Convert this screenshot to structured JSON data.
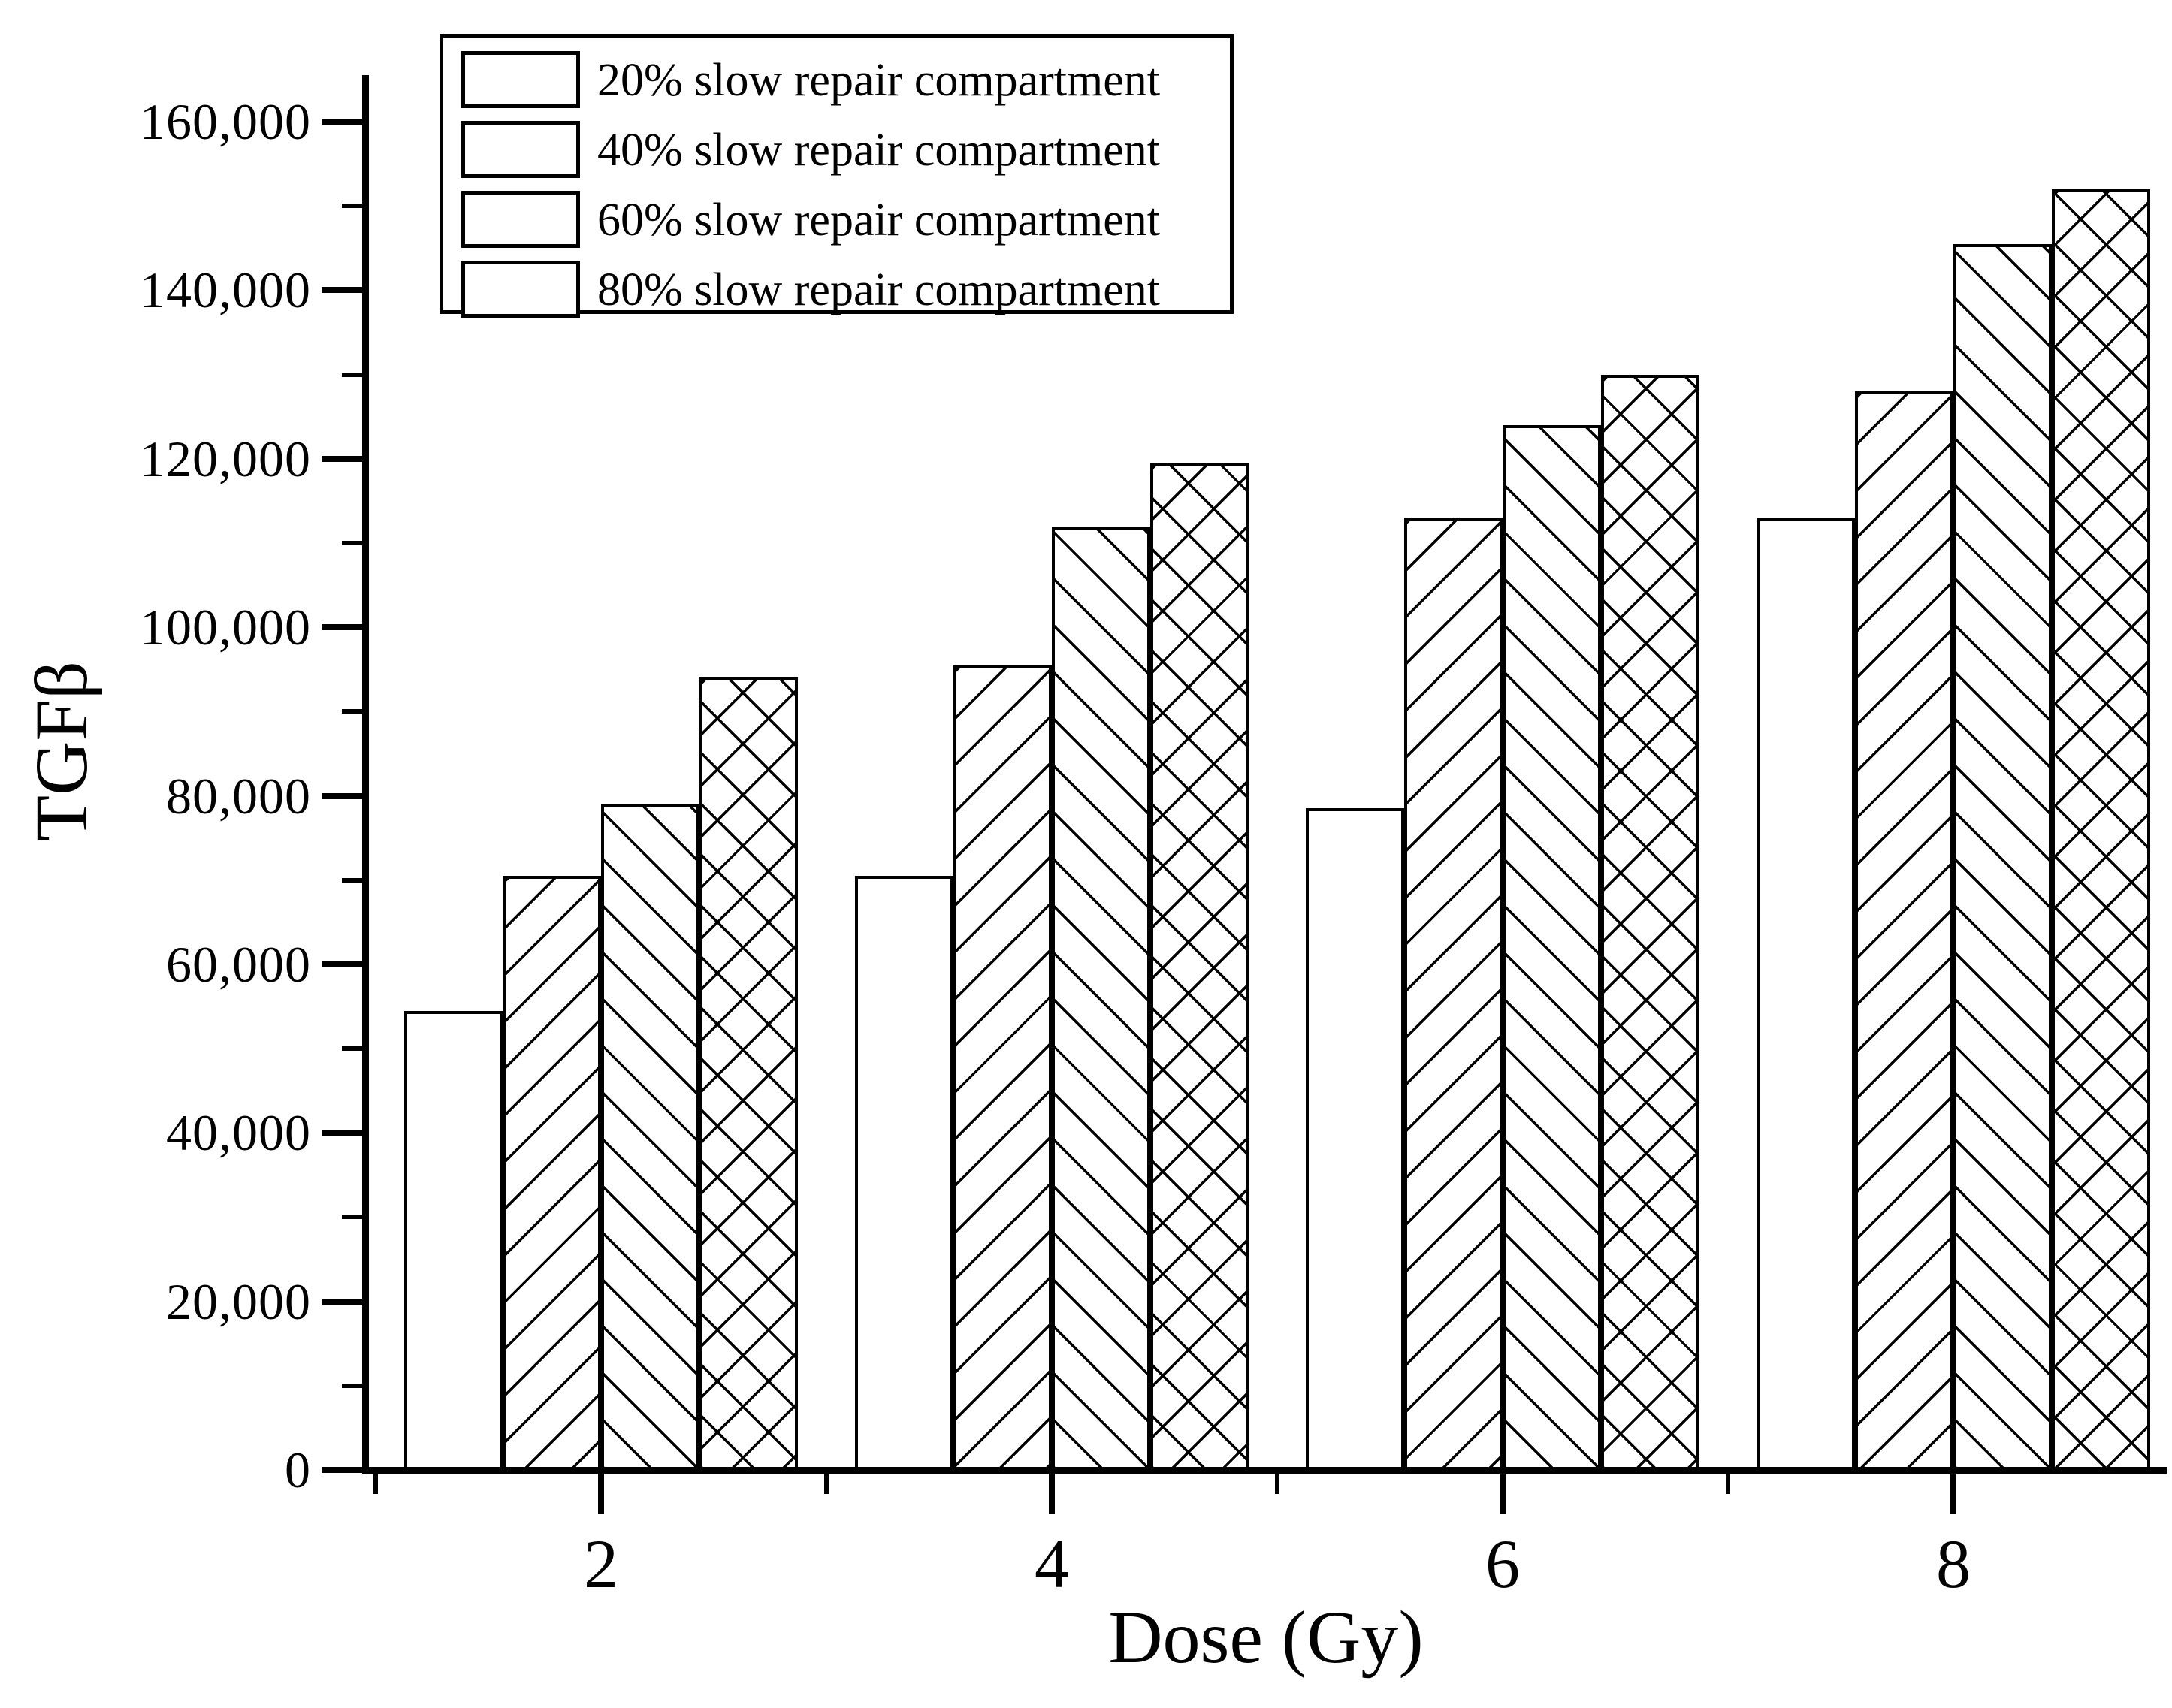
{
  "figure": {
    "background_color": "#ffffff",
    "ink_color": "#000000"
  },
  "chart_data": {
    "type": "bar",
    "title": "",
    "xlabel": "Dose (Gy)",
    "ylabel": "TGFβ",
    "categories": [
      "2",
      "4",
      "6",
      "8"
    ],
    "series": [
      {
        "name": "20% slow repair compartment",
        "pattern": "none",
        "values": [
          54500,
          70500,
          78500,
          113000
        ]
      },
      {
        "name": "40% slow repair compartment",
        "pattern": "diagonal-up",
        "values": [
          70500,
          95500,
          113000,
          128000
        ]
      },
      {
        "name": "60% slow repair compartment",
        "pattern": "diagonal-down",
        "values": [
          79000,
          112000,
          124000,
          145500
        ]
      },
      {
        "name": "80% slow repair compartment",
        "pattern": "crosshatch",
        "values": [
          94000,
          119500,
          130000,
          152000
        ]
      }
    ],
    "ylim": [
      0,
      165000
    ],
    "y_major_step": 20000,
    "y_minor_step": 10000,
    "ytick_values": [
      0,
      20000,
      40000,
      60000,
      80000,
      100000,
      120000,
      140000,
      160000
    ],
    "ytick_labels": [
      "0",
      "20,000",
      "40,000",
      "60,000",
      "80,000",
      "100,000",
      "120,000",
      "140,000",
      "160,000"
    ],
    "xtick_labels": [
      "2",
      "4",
      "6",
      "8"
    ],
    "grid": "off",
    "legend_position": "top-left",
    "bar_fill": "#ffffff",
    "bar_edge": "#000000"
  }
}
